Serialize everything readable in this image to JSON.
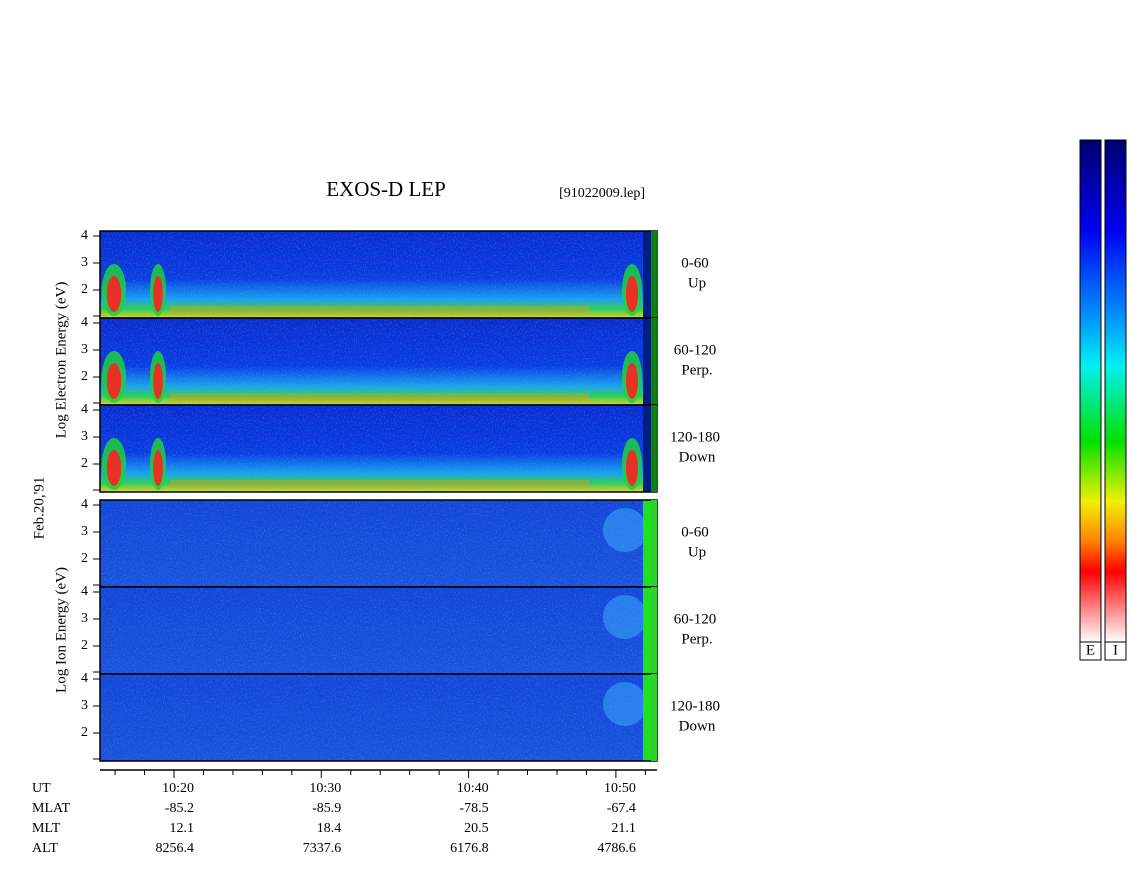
{
  "title": "EXOS-D LEP",
  "file": "[91022009.lep]",
  "date": "Feb.20,'91",
  "electron_axis_label": "Log Electron Energy (eV)",
  "ion_axis_label": "Log Ion Energy (eV)",
  "energy_ticks": [
    "4",
    "3",
    "2"
  ],
  "electron_panels": [
    {
      "label": "0-60",
      "sublabel": "Up"
    },
    {
      "label": "60-120",
      "sublabel": "Perp."
    },
    {
      "label": "120-180",
      "sublabel": "Down"
    }
  ],
  "ion_panels": [
    {
      "label": "0-60",
      "sublabel": "Up"
    },
    {
      "label": "60-120",
      "sublabel": "Perp."
    },
    {
      "label": "120-180",
      "sublabel": "Down"
    }
  ],
  "time_axis": {
    "row_labels": [
      "UT",
      "MLAT",
      "MLT",
      "ALT"
    ],
    "columns": [
      [
        "10:20",
        "-85.2",
        "12.1",
        "8256.4"
      ],
      [
        "10:30",
        "-85.9",
        "18.4",
        "7337.6"
      ],
      [
        "10:40",
        "-78.5",
        "20.5",
        "6176.8"
      ],
      [
        "10:50",
        "-67.4",
        "21.1",
        "4786.6"
      ]
    ]
  },
  "colorbar_labels": [
    "E",
    "I"
  ]
}
